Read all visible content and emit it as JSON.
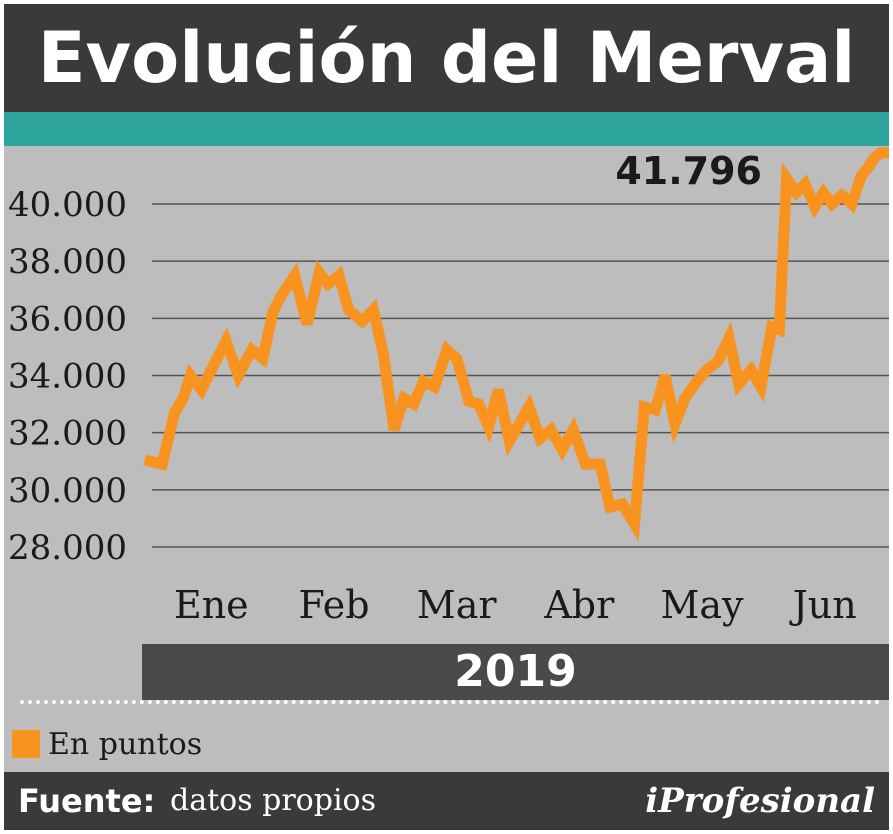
{
  "header": {
    "title": "Evolución del Merval"
  },
  "chart_data": {
    "type": "line",
    "title": "Evolución del Merval",
    "unit": "En puntos",
    "year": "2019",
    "ylim": [
      27000,
      41800
    ],
    "yticks": [
      28000,
      30000,
      32000,
      34000,
      36000,
      38000,
      40000
    ],
    "ytick_labels": [
      "28.000",
      "30.000",
      "32.000",
      "34.000",
      "36.000",
      "38.000",
      "40.000"
    ],
    "xlim": [
      0,
      6
    ],
    "months": [
      "Ene",
      "Feb",
      "Mar",
      "Abr",
      "May",
      "Jun"
    ],
    "grid": true,
    "last_value_label": "41.796",
    "colors": {
      "line": "#f7931e",
      "grid": "#555555"
    },
    "series": [
      {
        "x": [
          0.0,
          0.1,
          0.2,
          0.27,
          0.33,
          0.42,
          0.5,
          0.62,
          0.72,
          0.83,
          0.92,
          1.0,
          1.07,
          1.18,
          1.28,
          1.38,
          1.45,
          1.54,
          1.62,
          1.73,
          1.82,
          1.9,
          1.99,
          2.07,
          2.15,
          2.23,
          2.32,
          2.42,
          2.5,
          2.6,
          2.68,
          2.76,
          2.84,
          2.93,
          3.01,
          3.09,
          3.18,
          3.27,
          3.36,
          3.45,
          3.55,
          3.67,
          3.75,
          3.85,
          3.95,
          4.03,
          4.12,
          4.2,
          4.28,
          4.36,
          4.46,
          4.54,
          4.63,
          4.72,
          4.8,
          4.9,
          4.98,
          5.07,
          5.13,
          5.19,
          5.27,
          5.34,
          5.42,
          5.49,
          5.56,
          5.64,
          5.72,
          5.8,
          5.86,
          5.9,
          5.96,
          6.0
        ],
        "y": [
          31000,
          30900,
          32700,
          33200,
          34000,
          33500,
          34200,
          35200,
          34000,
          34900,
          34600,
          36200,
          36800,
          37500,
          35800,
          37600,
          37200,
          37500,
          36300,
          35900,
          36300,
          34800,
          32100,
          33200,
          33000,
          33800,
          33600,
          34900,
          34600,
          33100,
          33000,
          32200,
          33500,
          31700,
          32300,
          32900,
          31800,
          32100,
          31400,
          32100,
          30900,
          30900,
          29400,
          29500,
          28800,
          32900,
          32800,
          34000,
          32300,
          33200,
          33800,
          34200,
          34500,
          35300,
          33700,
          34200,
          33600,
          35700,
          35600,
          40900,
          40400,
          40700,
          39900,
          40400,
          40000,
          40300,
          40000,
          41000,
          41300,
          41600,
          41796,
          41796
        ]
      }
    ]
  },
  "footer": {
    "legend_label": "En puntos",
    "source_label": "Fuente:",
    "source_text": "datos propios",
    "brand": "iProfesional"
  }
}
